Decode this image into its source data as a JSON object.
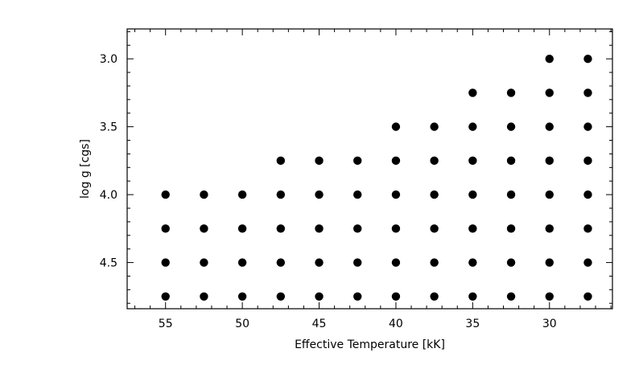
{
  "chart_data": {
    "type": "scatter",
    "xlabel": "Effective Temperature [kK]",
    "ylabel": "log g [cgs]",
    "xlim": [
      57.5,
      25.9
    ],
    "ylim": [
      4.84,
      2.78
    ],
    "x_reversed": true,
    "y_reversed": true,
    "x_ticks": [
      55,
      50,
      45,
      40,
      35,
      30
    ],
    "x_tick_labels": [
      "55",
      "50",
      "45",
      "40",
      "35",
      "30"
    ],
    "y_ticks": [
      3.0,
      3.5,
      4.0,
      4.5
    ],
    "y_tick_labels": [
      "3.0",
      "3.5",
      "4.0",
      "4.5"
    ],
    "grid": false,
    "legend": "none",
    "marker_color": "#000000",
    "series": [
      {
        "points": [
          [
            55,
            4.0
          ],
          [
            55,
            4.25
          ],
          [
            55,
            4.5
          ],
          [
            55,
            4.75
          ],
          [
            52.5,
            4.0
          ],
          [
            52.5,
            4.25
          ],
          [
            52.5,
            4.5
          ],
          [
            52.5,
            4.75
          ],
          [
            50,
            4.0
          ],
          [
            50,
            4.25
          ],
          [
            50,
            4.5
          ],
          [
            50,
            4.75
          ],
          [
            47.5,
            3.75
          ],
          [
            47.5,
            4.0
          ],
          [
            47.5,
            4.25
          ],
          [
            47.5,
            4.5
          ],
          [
            47.5,
            4.75
          ],
          [
            45,
            3.75
          ],
          [
            45,
            4.0
          ],
          [
            45,
            4.25
          ],
          [
            45,
            4.5
          ],
          [
            45,
            4.75
          ],
          [
            42.5,
            3.75
          ],
          [
            42.5,
            4.0
          ],
          [
            42.5,
            4.25
          ],
          [
            42.5,
            4.5
          ],
          [
            42.5,
            4.75
          ],
          [
            40,
            3.5
          ],
          [
            40,
            3.75
          ],
          [
            40,
            4.0
          ],
          [
            40,
            4.25
          ],
          [
            40,
            4.5
          ],
          [
            40,
            4.75
          ],
          [
            37.5,
            3.5
          ],
          [
            37.5,
            3.75
          ],
          [
            37.5,
            4.0
          ],
          [
            37.5,
            4.25
          ],
          [
            37.5,
            4.5
          ],
          [
            37.5,
            4.75
          ],
          [
            35,
            3.25
          ],
          [
            35,
            3.5
          ],
          [
            35,
            3.75
          ],
          [
            35,
            4.0
          ],
          [
            35,
            4.25
          ],
          [
            35,
            4.5
          ],
          [
            35,
            4.75
          ],
          [
            32.5,
            3.25
          ],
          [
            32.5,
            3.5
          ],
          [
            32.5,
            3.75
          ],
          [
            32.5,
            4.0
          ],
          [
            32.5,
            4.25
          ],
          [
            32.5,
            4.5
          ],
          [
            32.5,
            4.75
          ],
          [
            30,
            3.0
          ],
          [
            30,
            3.25
          ],
          [
            30,
            3.5
          ],
          [
            30,
            3.75
          ],
          [
            30,
            4.0
          ],
          [
            30,
            4.25
          ],
          [
            30,
            4.5
          ],
          [
            30,
            4.75
          ],
          [
            27.5,
            3.0
          ],
          [
            27.5,
            3.25
          ],
          [
            27.5,
            3.5
          ],
          [
            27.5,
            3.75
          ],
          [
            27.5,
            4.0
          ],
          [
            27.5,
            4.25
          ],
          [
            27.5,
            4.5
          ],
          [
            27.5,
            4.75
          ]
        ]
      }
    ]
  }
}
